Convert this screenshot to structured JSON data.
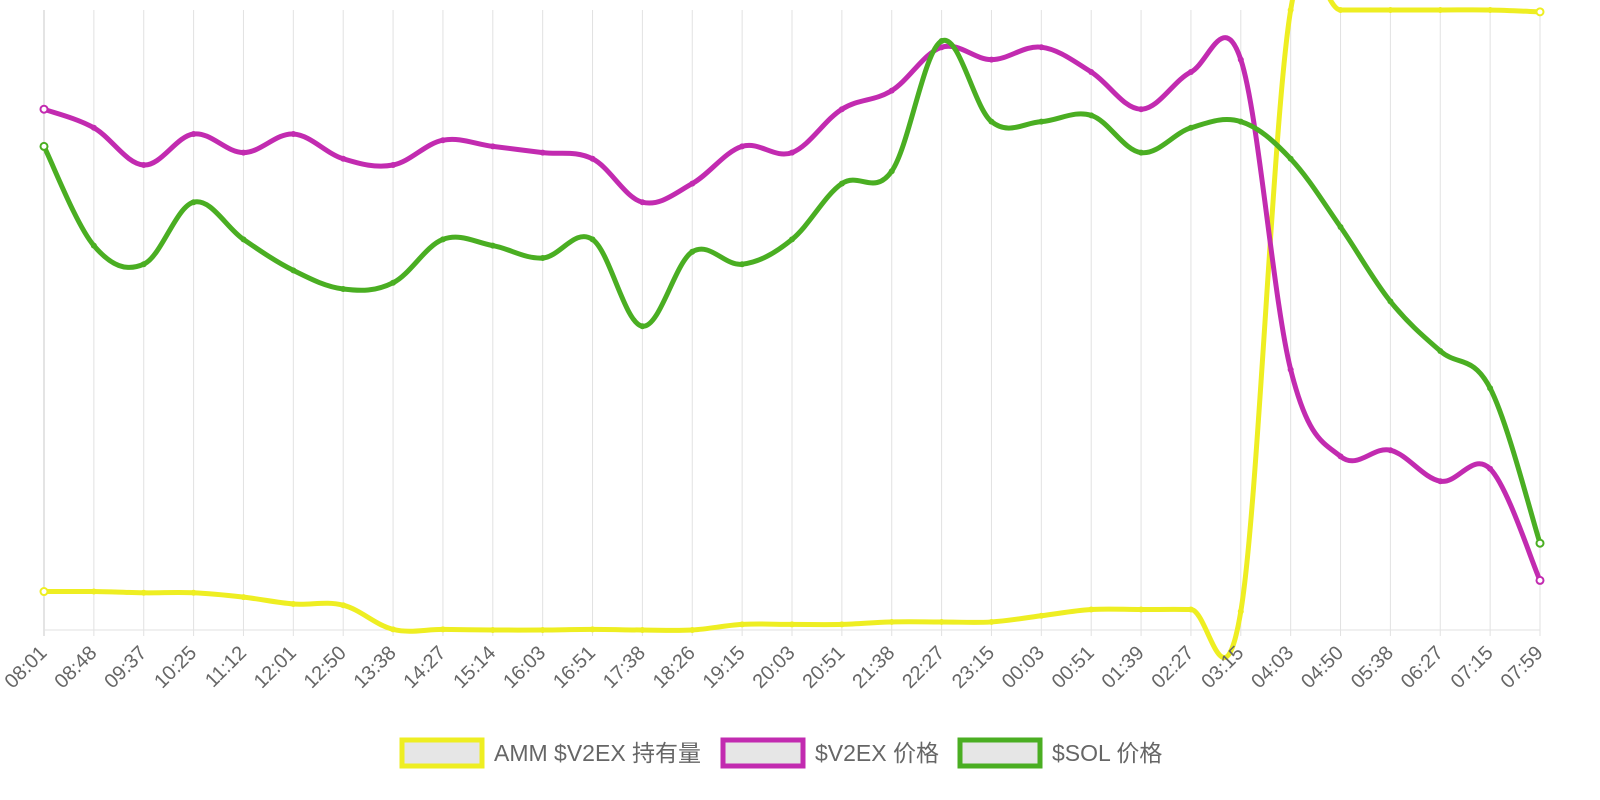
{
  "chart_data": {
    "type": "line",
    "x_labels": [
      "08:01",
      "08:48",
      "09:37",
      "10:25",
      "11:12",
      "12:01",
      "12:50",
      "13:38",
      "14:27",
      "15:14",
      "16:03",
      "16:51",
      "17:38",
      "18:26",
      "19:15",
      "20:03",
      "20:51",
      "21:38",
      "22:27",
      "23:15",
      "00:03",
      "00:51",
      "01:39",
      "02:27",
      "03:15",
      "04:03",
      "04:50",
      "05:38",
      "06:27",
      "07:15",
      "07:59"
    ],
    "y_range": [
      0,
      1
    ],
    "y_axis_labels_shown": false,
    "grid": "vertical",
    "legend_position": "bottom",
    "series": [
      {
        "name": "AMM $V2EX 持有量",
        "color": "#eeee22",
        "values": [
          0.062,
          0.062,
          0.06,
          0.06,
          0.053,
          0.042,
          0.04,
          0.001,
          0.001,
          0.0,
          0.0,
          0.001,
          0.0,
          0.0,
          0.009,
          0.009,
          0.009,
          0.013,
          0.013,
          0.013,
          0.023,
          0.033,
          0.033,
          0.033,
          0.03,
          1.0,
          1.0,
          1.0,
          1.0,
          1.0,
          0.997
        ]
      },
      {
        "name": "$V2EX 价格",
        "color": "#c22bb0",
        "values": [
          0.84,
          0.81,
          0.75,
          0.8,
          0.77,
          0.8,
          0.76,
          0.75,
          0.79,
          0.78,
          0.77,
          0.76,
          0.69,
          0.72,
          0.78,
          0.77,
          0.84,
          0.87,
          0.94,
          0.92,
          0.94,
          0.9,
          0.84,
          0.9,
          0.92,
          0.42,
          0.28,
          0.29,
          0.24,
          0.26,
          0.08
        ]
      },
      {
        "name": "$SOL 价格",
        "color": "#4aae22",
        "values": [
          0.78,
          0.62,
          0.59,
          0.69,
          0.63,
          0.58,
          0.55,
          0.56,
          0.63,
          0.62,
          0.6,
          0.63,
          0.49,
          0.61,
          0.59,
          0.63,
          0.72,
          0.74,
          0.95,
          0.82,
          0.82,
          0.83,
          0.77,
          0.81,
          0.82,
          0.76,
          0.65,
          0.53,
          0.45,
          0.39,
          0.14
        ]
      }
    ]
  }
}
